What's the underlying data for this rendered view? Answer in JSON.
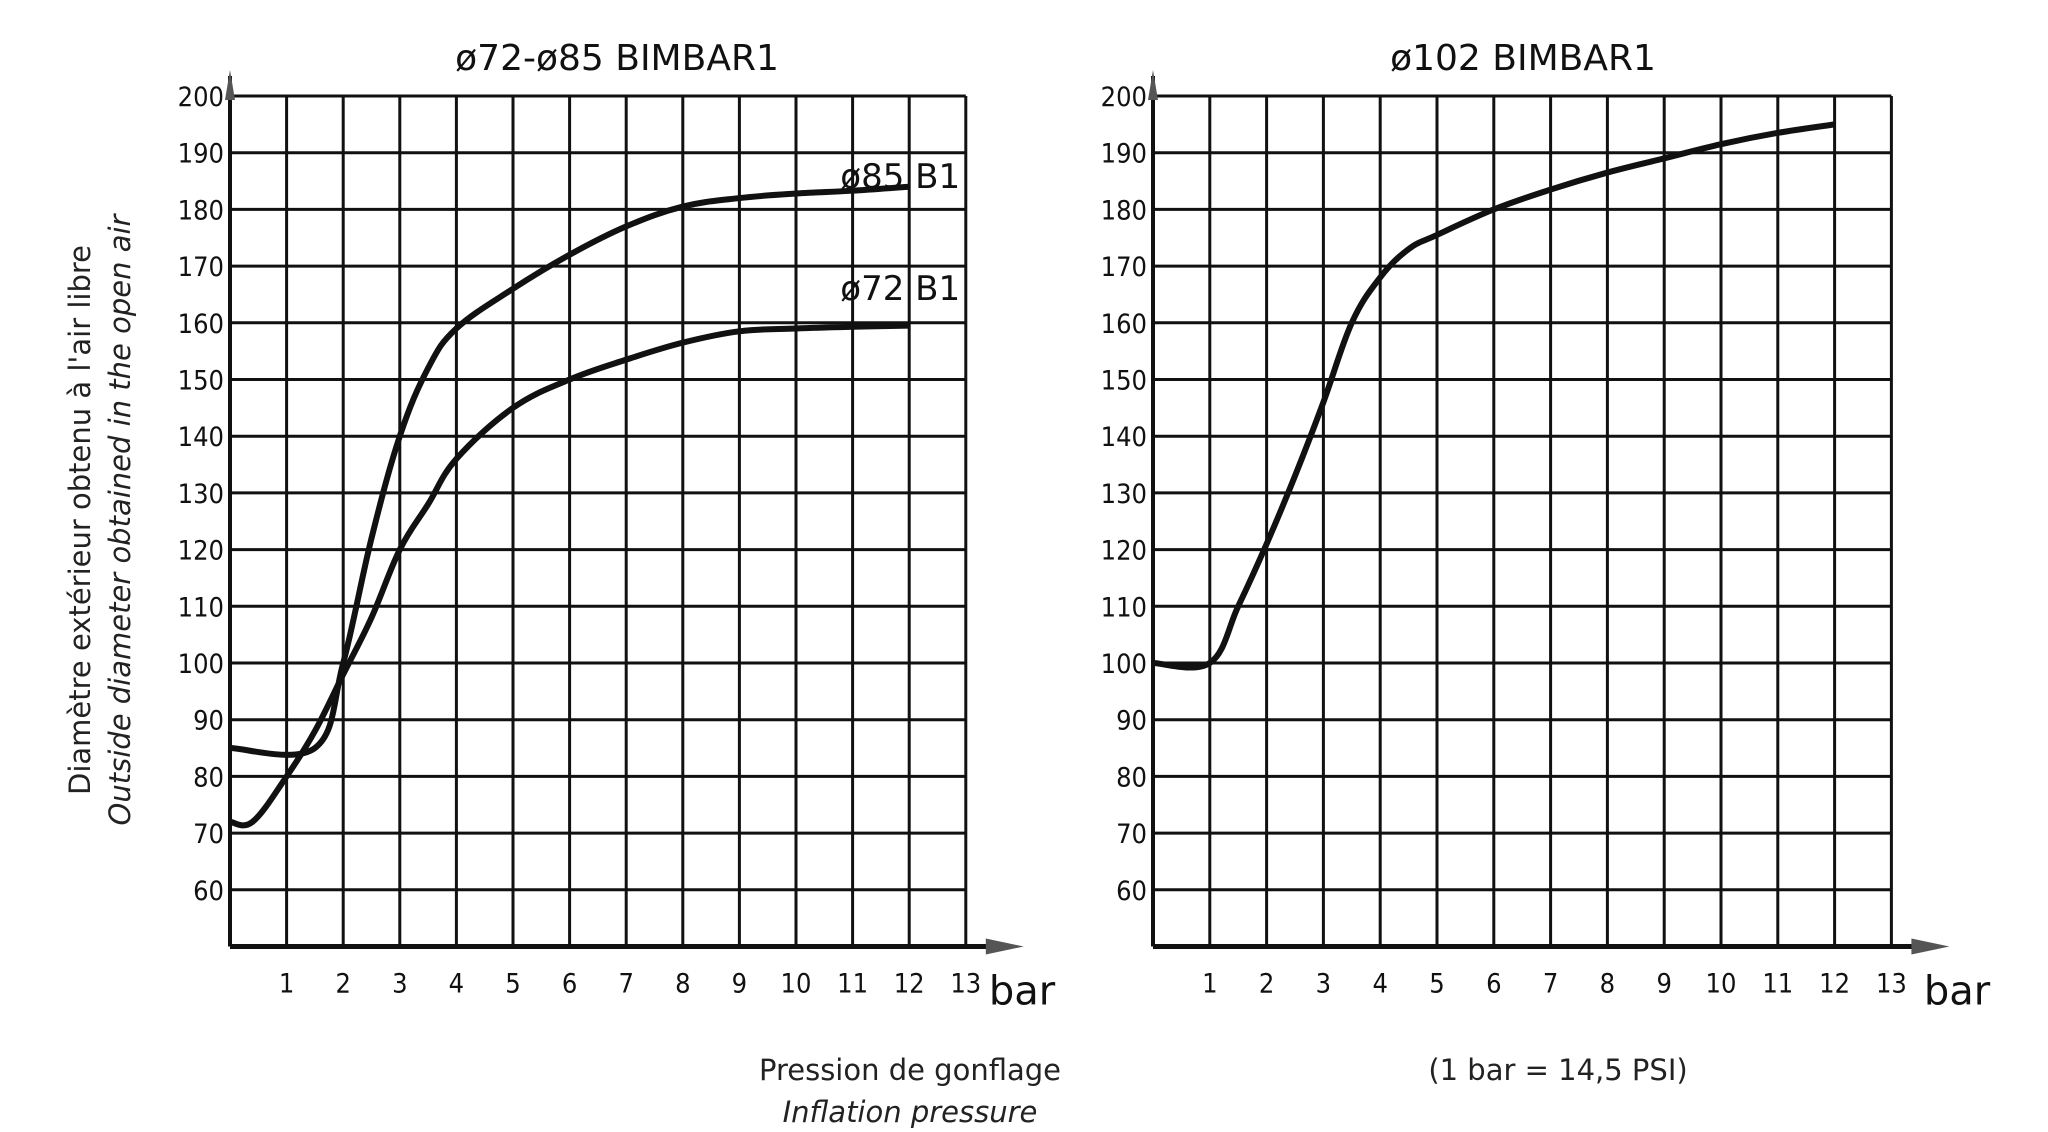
{
  "chart_data": [
    {
      "type": "line",
      "title": "ø72-ø85 BIMBAR1",
      "xlabel": "bar",
      "ylabel_fr": "Diamètre extérieur obtenu à l'air libre",
      "ylabel_en": "Outside diameter obtained in the open air",
      "xlim": [
        0,
        13
      ],
      "ylim": [
        50,
        200
      ],
      "x_ticks": [
        "1",
        "2",
        "3",
        "4",
        "5",
        "6",
        "7",
        "8",
        "9",
        "10",
        "11",
        "12",
        "13"
      ],
      "y_ticks": [
        "60",
        "70",
        "80",
        "90",
        "100",
        "110",
        "120",
        "130",
        "140",
        "150",
        "160",
        "170",
        "180",
        "190",
        "200"
      ],
      "grid": true,
      "series": [
        {
          "name": "ø85 B1",
          "x": [
            0,
            1.5,
            2,
            2.5,
            3,
            3.5,
            4,
            5,
            6,
            7,
            8,
            9,
            10,
            11,
            12
          ],
          "y": [
            85,
            85,
            100,
            122,
            140,
            152,
            159,
            166,
            172,
            177,
            180.5,
            182,
            182.8,
            183.3,
            184
          ]
        },
        {
          "name": "ø72 B1",
          "x": [
            0,
            0.4,
            1,
            1.5,
            2,
            2.5,
            3,
            3.5,
            4,
            5,
            6,
            7,
            8,
            9,
            10,
            11,
            12
          ],
          "y": [
            72,
            72,
            80,
            88,
            98,
            108,
            120,
            128,
            136,
            145,
            150,
            153.5,
            156.5,
            158.5,
            159,
            159.3,
            159.5
          ]
        }
      ]
    },
    {
      "type": "line",
      "title": "ø102 BIMBAR1",
      "xlabel": "bar",
      "xlim": [
        0,
        13
      ],
      "ylim": [
        50,
        200
      ],
      "x_ticks": [
        "1",
        "2",
        "3",
        "4",
        "5",
        "6",
        "7",
        "8",
        "9",
        "10",
        "11",
        "12",
        "13"
      ],
      "y_ticks": [
        "60",
        "70",
        "80",
        "90",
        "100",
        "110",
        "120",
        "130",
        "140",
        "150",
        "160",
        "170",
        "180",
        "190",
        "200"
      ],
      "grid": true,
      "series": [
        {
          "x": [
            0,
            1,
            1.5,
            2,
            2.5,
            3,
            3.5,
            4,
            4.5,
            5,
            6,
            7,
            8,
            9,
            10,
            11,
            12
          ],
          "y": [
            100,
            100,
            110,
            121,
            133,
            146,
            160,
            168,
            173,
            175.5,
            180,
            183.5,
            186.5,
            189,
            191.5,
            193.5,
            195
          ]
        }
      ]
    }
  ],
  "captions": {
    "pressure_fr": "Pression de gonflage",
    "pressure_en": "Inflation pressure",
    "conversion": "(1 bar = 14,5 PSI)"
  },
  "colors": {
    "line": "#111111",
    "grid": "#111111"
  }
}
